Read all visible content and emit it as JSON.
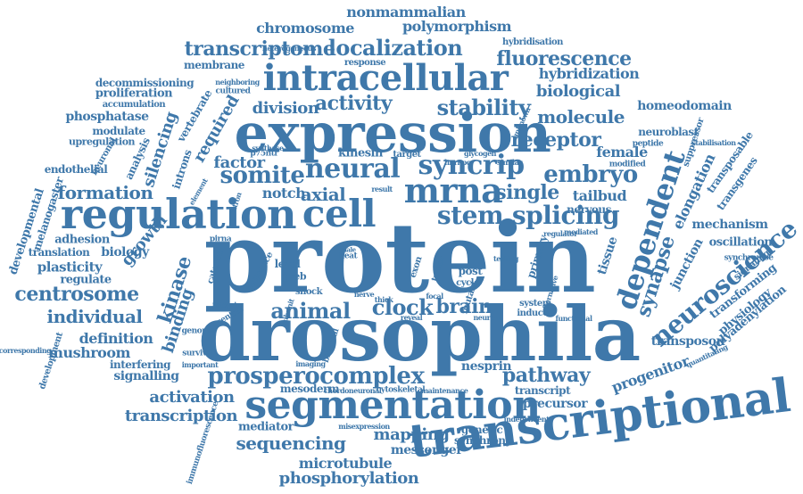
{
  "color": "#3f78aa",
  "words": [
    "protein",
    "drosophila",
    "expression",
    "regulation",
    "transcriptional",
    "segmentation",
    "intracellular",
    "mrna",
    "cell",
    "neural",
    "somite",
    "syncrip",
    "embryo",
    "stem",
    "splicing",
    "dependent",
    "neuroscience",
    "prosperocomplex",
    "animal",
    "clock",
    "brain",
    "transcriptome",
    "localization",
    "fluorescence",
    "stability",
    "activity",
    "division",
    "receptor",
    "molecule",
    "kinase",
    "centrosome",
    "individual",
    "formation",
    "sequencing",
    "pathway",
    "activation",
    "transcription",
    "mapping",
    "phosphorylation",
    "microtubule",
    "synapse",
    "single",
    "axial",
    "notch",
    "factor",
    "silencing",
    "binding",
    "required",
    "growth",
    "chromosome",
    "polymorphism",
    "nonmammalian",
    "hybridization",
    "biological",
    "homeodomain",
    "elongation",
    "progenitor",
    "definition",
    "mushroom",
    "signalling",
    "messenger",
    "transposon",
    "mediator",
    "transcript",
    "precursor",
    "genetic",
    "synchrony",
    "mesoderm",
    "cytoskeletal",
    "nesprin",
    "female",
    "tailbud",
    "nervous",
    "tissue",
    "junction",
    "mechanism",
    "oscillation",
    "physiology",
    "transforming",
    "polyadenylation",
    "plasticity",
    "regulate",
    "adhesion",
    "translation",
    "biology",
    "developmental",
    "melanogaster",
    "endothelial",
    "development",
    "interfering",
    "immunofluorescence",
    "phosphatase",
    "modulate",
    "upregulation",
    "proliferation",
    "decommissioning",
    "accumulation",
    "membrane",
    "response",
    "hybridisation",
    "neuroblast",
    "suppressor",
    "transposable",
    "transgenes",
    "peptide",
    "modified",
    "signaling",
    "synchronise",
    "primary",
    "post",
    "cycle",
    "mutant",
    "exon",
    "level",
    "greb",
    "shock",
    "kinesin",
    "target",
    "p75ntr",
    "analysis",
    "introns",
    "vertebrate",
    "neuronal",
    "cultured",
    "neighboring",
    "genome",
    "survival",
    "important",
    "central",
    "induced",
    "system",
    "functional",
    "reveal",
    "neuron",
    "heat",
    "male",
    "intron",
    "pirna",
    "catenin",
    "bicaudal",
    "sequence",
    "quantitating",
    "stabilisation",
    "alternative",
    "independent",
    "misexpression",
    "chordoneuronal",
    "maintenance",
    "element",
    "synthase",
    "nerve",
    "glycogen",
    "unknown",
    "similar",
    "hnrnpq",
    "result",
    "testing",
    "focal",
    "tumor",
    "thick",
    "subunit",
    "integrin",
    "imaging",
    "regulator",
    "mediated",
    "corresponding",
    "heterogeneous"
  ]
}
